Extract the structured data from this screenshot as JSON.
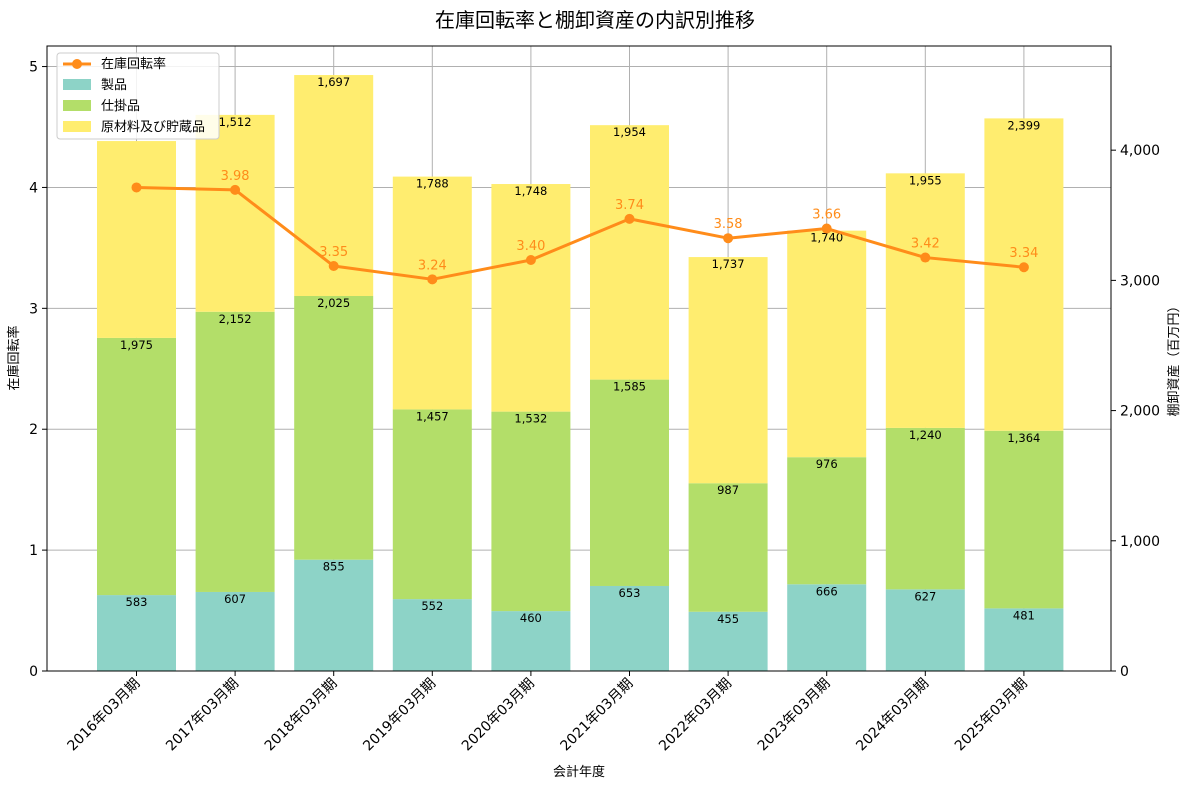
{
  "chart_data": {
    "type": "bar",
    "title": "在庫回転率と棚卸資産の内訳別推移",
    "xlabel": "会計年度",
    "ylabel_left": "在庫回転率",
    "ylabel_right": "棚卸資産（百万円）",
    "categories": [
      "2016年03月期",
      "2017年03月期",
      "2018年03月期",
      "2019年03月期",
      "2020年03月期",
      "2021年03月期",
      "2022年03月期",
      "2023年03月期",
      "2024年03月期",
      "2025年03月期"
    ],
    "ylim_left": [
      0,
      5.17
    ],
    "yticks_left": [
      "0",
      "1",
      "2",
      "3",
      "4",
      "5"
    ],
    "ylim_right": [
      0,
      4800
    ],
    "yticks_right": [
      "0",
      "1,000",
      "2,000",
      "3,000",
      "4,000"
    ],
    "grid": true,
    "legend_position": "top-left",
    "stack_series": [
      {
        "name": "製品",
        "color": "#8dd3c7",
        "values": [
          583,
          607,
          855,
          552,
          460,
          653,
          455,
          666,
          627,
          481
        ]
      },
      {
        "name": "仕掛品",
        "color": "#b3de69",
        "values": [
          1975,
          2152,
          2025,
          1457,
          1532,
          1585,
          987,
          976,
          1240,
          1364
        ]
      },
      {
        "name": "原材料及び貯蔵品",
        "color": "#ffed6f",
        "values": [
          1512,
          1512,
          1697,
          1788,
          1748,
          1954,
          1737,
          1740,
          1955,
          2399
        ]
      }
    ],
    "stack_labels": [
      [
        "583",
        "607",
        "855",
        "552",
        "460",
        "653",
        "455",
        "666",
        "627",
        "481"
      ],
      [
        "1,975",
        "2,152",
        "2,025",
        "1,457",
        "1,532",
        "1,585",
        "987",
        "976",
        "1,240",
        "1,364"
      ],
      [
        "",
        "1,512",
        "1,697",
        "1,788",
        "1,748",
        "1,954",
        "1,737",
        "1,740",
        "1,955",
        "2,399"
      ]
    ],
    "line_series": {
      "name": "在庫回転率",
      "color": "#ff8c1a",
      "values": [
        4.0,
        3.98,
        3.35,
        3.24,
        3.4,
        3.74,
        3.58,
        3.66,
        3.42,
        3.34
      ],
      "labels": [
        "",
        "3.98",
        "3.35",
        "3.24",
        "3.40",
        "3.74",
        "3.58",
        "3.66",
        "3.42",
        "3.34"
      ]
    }
  }
}
